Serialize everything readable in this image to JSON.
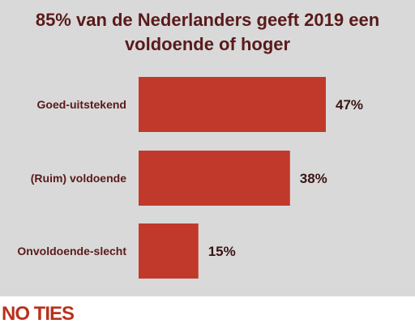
{
  "chart_data": {
    "type": "bar",
    "orientation": "horizontal",
    "title": "85% van de Nederlanders geeft 2019 een\nvoldoende of hoger",
    "categories": [
      "Goed-uitstekend",
      "(Ruim) voldoende",
      "Onvoldoende-slecht"
    ],
    "values": [
      47,
      38,
      15
    ],
    "value_labels": [
      "47%",
      "38%",
      "15%"
    ],
    "xlim": [
      0,
      60
    ],
    "grid": false,
    "bar_color": "#c0392b"
  },
  "colors": {
    "panel_background": "#d9d9d9",
    "title": "#5a1a1a",
    "logo": "#b8321d"
  },
  "logo": {
    "text": "NO TIES"
  }
}
